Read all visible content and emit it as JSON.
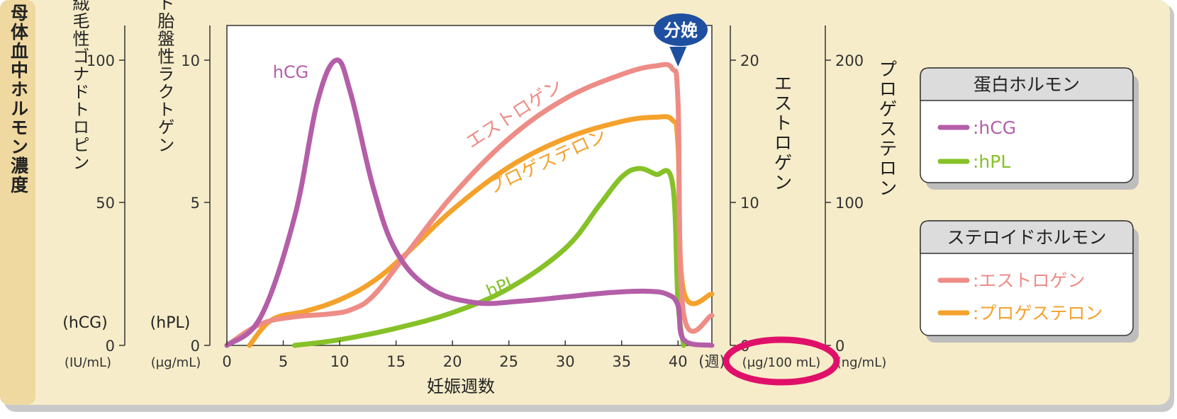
{
  "side_label": "母体血中ホルモン濃度",
  "left_axes": [
    {
      "label": "ヒト絨毛性ゴナドトロピン",
      "abbr": "(hCG)",
      "unit": "(IU/mL)",
      "ticks": [
        "0",
        "50",
        "100"
      ],
      "range": [
        0,
        100
      ]
    },
    {
      "label": "ヒト胎盤性ラクトゲン",
      "abbr": "(hPL)",
      "unit": "(μg/mL)",
      "ticks": [
        "0",
        "5",
        "10"
      ],
      "range": [
        0,
        10
      ]
    }
  ],
  "right_axes": [
    {
      "label": "エストロゲン",
      "unit": "(μg/100 mL)",
      "ticks": [
        "0",
        "10",
        "20"
      ],
      "range": [
        0,
        20
      ]
    },
    {
      "label": "プロゲステロン",
      "unit": "(ng/mL)",
      "ticks": [
        "0",
        "100",
        "200"
      ],
      "range": [
        0,
        200
      ]
    }
  ],
  "x_axis": {
    "label": "妊娠週数",
    "unit": "(週)",
    "ticks": [
      "0",
      "5",
      "10",
      "15",
      "20",
      "25",
      "30",
      "35",
      "40"
    ],
    "range": [
      0,
      43
    ]
  },
  "delivery_marker": {
    "label": "分娩",
    "week": 40
  },
  "legend": {
    "protein": {
      "title": "蛋白ホルモン",
      "items": [
        ":hCG",
        ":hPL"
      ]
    },
    "steroid": {
      "title": "ステロイドホルモン",
      "items": [
        ":エストロゲン",
        ":プロゲステロン"
      ]
    }
  },
  "colors": {
    "hCG": "#b45ea8",
    "hPL": "#86c128",
    "estrogen": "#ee8c86",
    "progesterone": "#f4a22c",
    "highlight": "#e0106a",
    "background": "#f7ecc9"
  },
  "chart_data": {
    "type": "line",
    "title": "",
    "xlabel": "妊娠週数",
    "xlim": [
      0,
      43
    ],
    "series": [
      {
        "name": "hCG",
        "axis": "hCG (IU/mL)",
        "x": [
          0,
          3,
          6,
          8,
          9.7,
          11,
          13,
          15,
          18,
          22,
          26,
          30,
          34,
          37,
          39,
          40,
          40.5,
          43
        ],
        "y": [
          0,
          10,
          45,
          85,
          100,
          88,
          55,
          33,
          20,
          15,
          15.5,
          17,
          18.5,
          19,
          18,
          14,
          2,
          0
        ]
      },
      {
        "name": "hPL",
        "axis": "hPL (μg/mL)",
        "x": [
          6,
          10,
          15,
          20,
          25,
          30,
          33,
          35,
          36.5,
          38,
          39.5,
          40,
          40.5
        ],
        "y": [
          0,
          0.2,
          0.6,
          1.15,
          2.0,
          3.4,
          4.9,
          5.9,
          6.2,
          6.0,
          5.7,
          1.5,
          0
        ]
      },
      {
        "name": "エストロゲン",
        "axis": "エストロゲン (μg/100 mL)",
        "x": [
          0,
          3,
          6,
          9,
          11,
          13,
          16,
          20,
          25,
          30,
          35,
          38,
          39.5,
          40,
          40.5,
          43
        ],
        "y": [
          0,
          1.5,
          2.0,
          2.2,
          2.5,
          3.5,
          6.5,
          10.5,
          14.5,
          17.3,
          19.0,
          19.6,
          19.4,
          17.0,
          2.2,
          2.1
        ]
      },
      {
        "name": "プロゲステロン",
        "axis": "プロゲステロン (ng/mL)",
        "x": [
          2,
          4,
          7,
          10,
          13,
          16,
          20,
          25,
          30,
          35,
          38,
          39.5,
          40,
          40.5,
          43
        ],
        "y": [
          0,
          18,
          24,
          32,
          45,
          65,
          95,
          125,
          145,
          157,
          160,
          158,
          140,
          38,
          36
        ]
      }
    ]
  }
}
